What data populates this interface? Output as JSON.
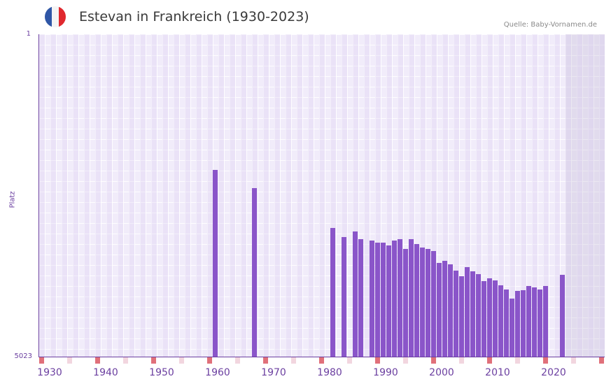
{
  "header": {
    "title": "Estevan in Frankreich (1930-2023)",
    "source": "Quelle: Baby-Vornamen.de",
    "flag_colors": [
      "#2f56a6",
      "#f4f4f4",
      "#e0282e"
    ]
  },
  "axes": {
    "y_top_label": "1",
    "y_bottom_label": "5023",
    "y_title": "Platz",
    "x_ticks": [
      "1930",
      "1940",
      "1950",
      "1960",
      "1970",
      "1980",
      "1990",
      "2000",
      "2010",
      "2020"
    ]
  },
  "colors": {
    "bar": "#8a55c9",
    "axis": "#6b3fa0",
    "decade_marker": "#e0707a",
    "mid_marker": "#f2d6df"
  },
  "chart_data": {
    "type": "bar",
    "title": "Estevan in Frankreich (1930-2023)",
    "xlabel": "",
    "ylabel": "Platz",
    "y_inverted": true,
    "ylim": [
      5023,
      1
    ],
    "xlim": [
      1928,
      2028
    ],
    "grid": true,
    "categories": [
      1959,
      1966,
      1980,
      1982,
      1984,
      1985,
      1987,
      1988,
      1989,
      1990,
      1991,
      1992,
      1993,
      1994,
      1995,
      1996,
      1997,
      1998,
      1999,
      2000,
      2001,
      2002,
      2003,
      2004,
      2005,
      2006,
      2007,
      2008,
      2009,
      2010,
      2011,
      2012,
      2013,
      2014,
      2015,
      2016,
      2017,
      2018,
      2021
    ],
    "values": [
      2109,
      2403,
      3014,
      3155,
      3068,
      3188,
      3210,
      3243,
      3243,
      3286,
      3210,
      3188,
      3341,
      3188,
      3264,
      3319,
      3341,
      3373,
      3559,
      3526,
      3581,
      3679,
      3766,
      3624,
      3690,
      3733,
      3842,
      3799,
      3831,
      3908,
      3973,
      4115,
      3995,
      3984,
      3919,
      3940,
      3973,
      3919,
      3744
    ]
  }
}
